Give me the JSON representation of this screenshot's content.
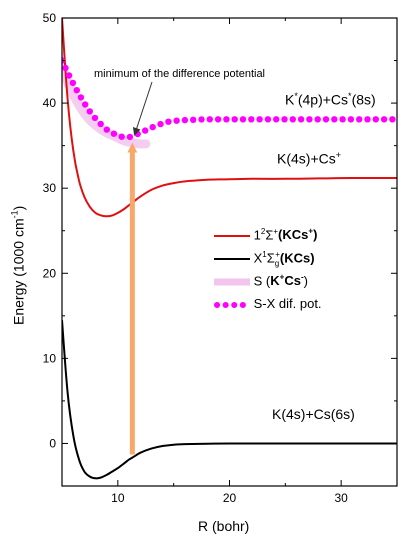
{
  "chart_data": {
    "type": "line",
    "xlabel": "R (bohr)",
    "ylabel": "Energy (1000 cm⁻¹)",
    "xlim": [
      5,
      35
    ],
    "ylim": [
      -5,
      50
    ],
    "x_ticks": [
      "10",
      "20",
      "30"
    ],
    "y_ticks": [
      "0",
      "10",
      "20",
      "30",
      "40",
      "50"
    ],
    "grid": false,
    "legend_position": "center-right",
    "series": [
      {
        "name": "1²Σ⁺(KCs⁺)",
        "color": "#e01010",
        "style": "solid",
        "x": [
          5.0,
          5.5,
          6.0,
          6.5,
          7.0,
          7.5,
          8.0,
          8.5,
          9.0,
          9.5,
          10.0,
          10.5,
          11.0,
          11.5,
          12.0,
          13.0,
          14.0,
          15.0,
          16.0,
          17.0,
          18.0,
          20.0,
          22.0,
          25.0,
          28.0,
          31.0,
          35.0
        ],
        "y": [
          50.0,
          40.5,
          34.5,
          31.0,
          29.0,
          27.8,
          27.1,
          26.8,
          26.7,
          26.8,
          27.1,
          27.5,
          28.0,
          28.5,
          29.0,
          29.8,
          30.3,
          30.6,
          30.8,
          30.9,
          31.0,
          31.05,
          31.1,
          31.1,
          31.15,
          31.2,
          31.2
        ]
      },
      {
        "name": "X¹Σg⁺(KCs)",
        "color": "#000000",
        "style": "solid",
        "x": [
          5.0,
          5.5,
          6.0,
          6.5,
          7.0,
          7.5,
          8.0,
          8.5,
          9.0,
          9.5,
          10.0,
          10.5,
          11.0,
          11.5,
          12.0,
          13.0,
          14.0,
          15.0,
          16.0,
          18.0,
          20.0,
          25.0,
          30.0,
          35.0
        ],
        "y": [
          14.5,
          6.0,
          1.0,
          -1.8,
          -3.3,
          -3.9,
          -4.1,
          -4.0,
          -3.7,
          -3.3,
          -2.9,
          -2.4,
          -1.9,
          -1.5,
          -1.1,
          -0.6,
          -0.3,
          -0.15,
          -0.08,
          -0.03,
          -0.01,
          0.0,
          0.0,
          0.0
        ]
      },
      {
        "name": "S (K⁺Cs⁻)",
        "color": "#f2c4ee",
        "style": "thick",
        "x": [
          5.0,
          5.5,
          6.0,
          6.5,
          7.0,
          7.5,
          8.0,
          8.5,
          9.0,
          9.5,
          10.0,
          10.5,
          11.0,
          11.5,
          12.0,
          12.5
        ],
        "y": [
          44.5,
          42.5,
          41.0,
          39.8,
          38.8,
          38.0,
          37.4,
          36.9,
          36.5,
          36.2,
          35.9,
          35.6,
          35.4,
          35.3,
          35.2,
          35.2
        ]
      },
      {
        "name": "S-X dif. pot.",
        "color": "#ff00ff",
        "style": "dotted",
        "x": [
          5.0,
          5.5,
          6.0,
          6.5,
          7.0,
          7.5,
          8.0,
          8.5,
          9.0,
          9.5,
          10.0,
          10.5,
          11.0,
          11.5,
          12.0,
          12.5,
          13.0,
          13.5,
          14.0,
          14.5,
          15.0,
          16.0,
          17.0,
          18.0,
          19.0,
          20.0,
          22.0,
          24.0,
          26.0,
          28.0,
          30.0,
          32.0,
          35.0
        ],
        "y": [
          45.0,
          43.6,
          42.3,
          41.1,
          40.0,
          39.0,
          38.2,
          37.5,
          36.9,
          36.5,
          36.2,
          36.0,
          36.0,
          36.2,
          36.5,
          36.8,
          37.1,
          37.4,
          37.6,
          37.8,
          37.9,
          38.0,
          38.05,
          38.1,
          38.1,
          38.1,
          38.1,
          38.1,
          38.1,
          38.1,
          38.1,
          38.1,
          38.1
        ]
      }
    ],
    "annotations": {
      "min_text": "minimum of the difference potential",
      "asymptotes": {
        "excited": {
          "base": "K",
          "sup1": "*",
          "mid": "(4p)+Cs",
          "sup2": "*",
          "end": "(8s)"
        },
        "ionic": {
          "base": "K(4s)+Cs",
          "sup": "+"
        },
        "ground": {
          "text": "K(4s)+Cs(6s)"
        }
      },
      "transition_arrow": {
        "x": 11.3,
        "y_from": -1.3,
        "y_to": 35.7,
        "color": "#f7a86a"
      }
    }
  },
  "legend": [
    {
      "base": "1",
      "sup": "2",
      "mid": "Σ",
      "sup2": "+",
      "bold_open": "(",
      "bold": "KCs",
      "bold_sup": "+",
      "bold_close": ")"
    },
    {
      "base": "X",
      "sup": "1",
      "mid": "Σ",
      "sub": "g",
      "sup2": "+",
      "bold_open": "(",
      "bold": "KCs",
      "bold_close": ")"
    },
    {
      "base": "S (",
      "bold": "K",
      "bold_sup": "+",
      "bold2": "Cs",
      "bold_sup2": "-",
      "end": ")"
    },
    {
      "base": "S-X dif. pot."
    }
  ],
  "axis_text": {
    "ylabel_main": "Energy (1000 cm",
    "ylabel_sup": "-1",
    "ylabel_end": ")",
    "xlabel": "R (bohr)"
  }
}
